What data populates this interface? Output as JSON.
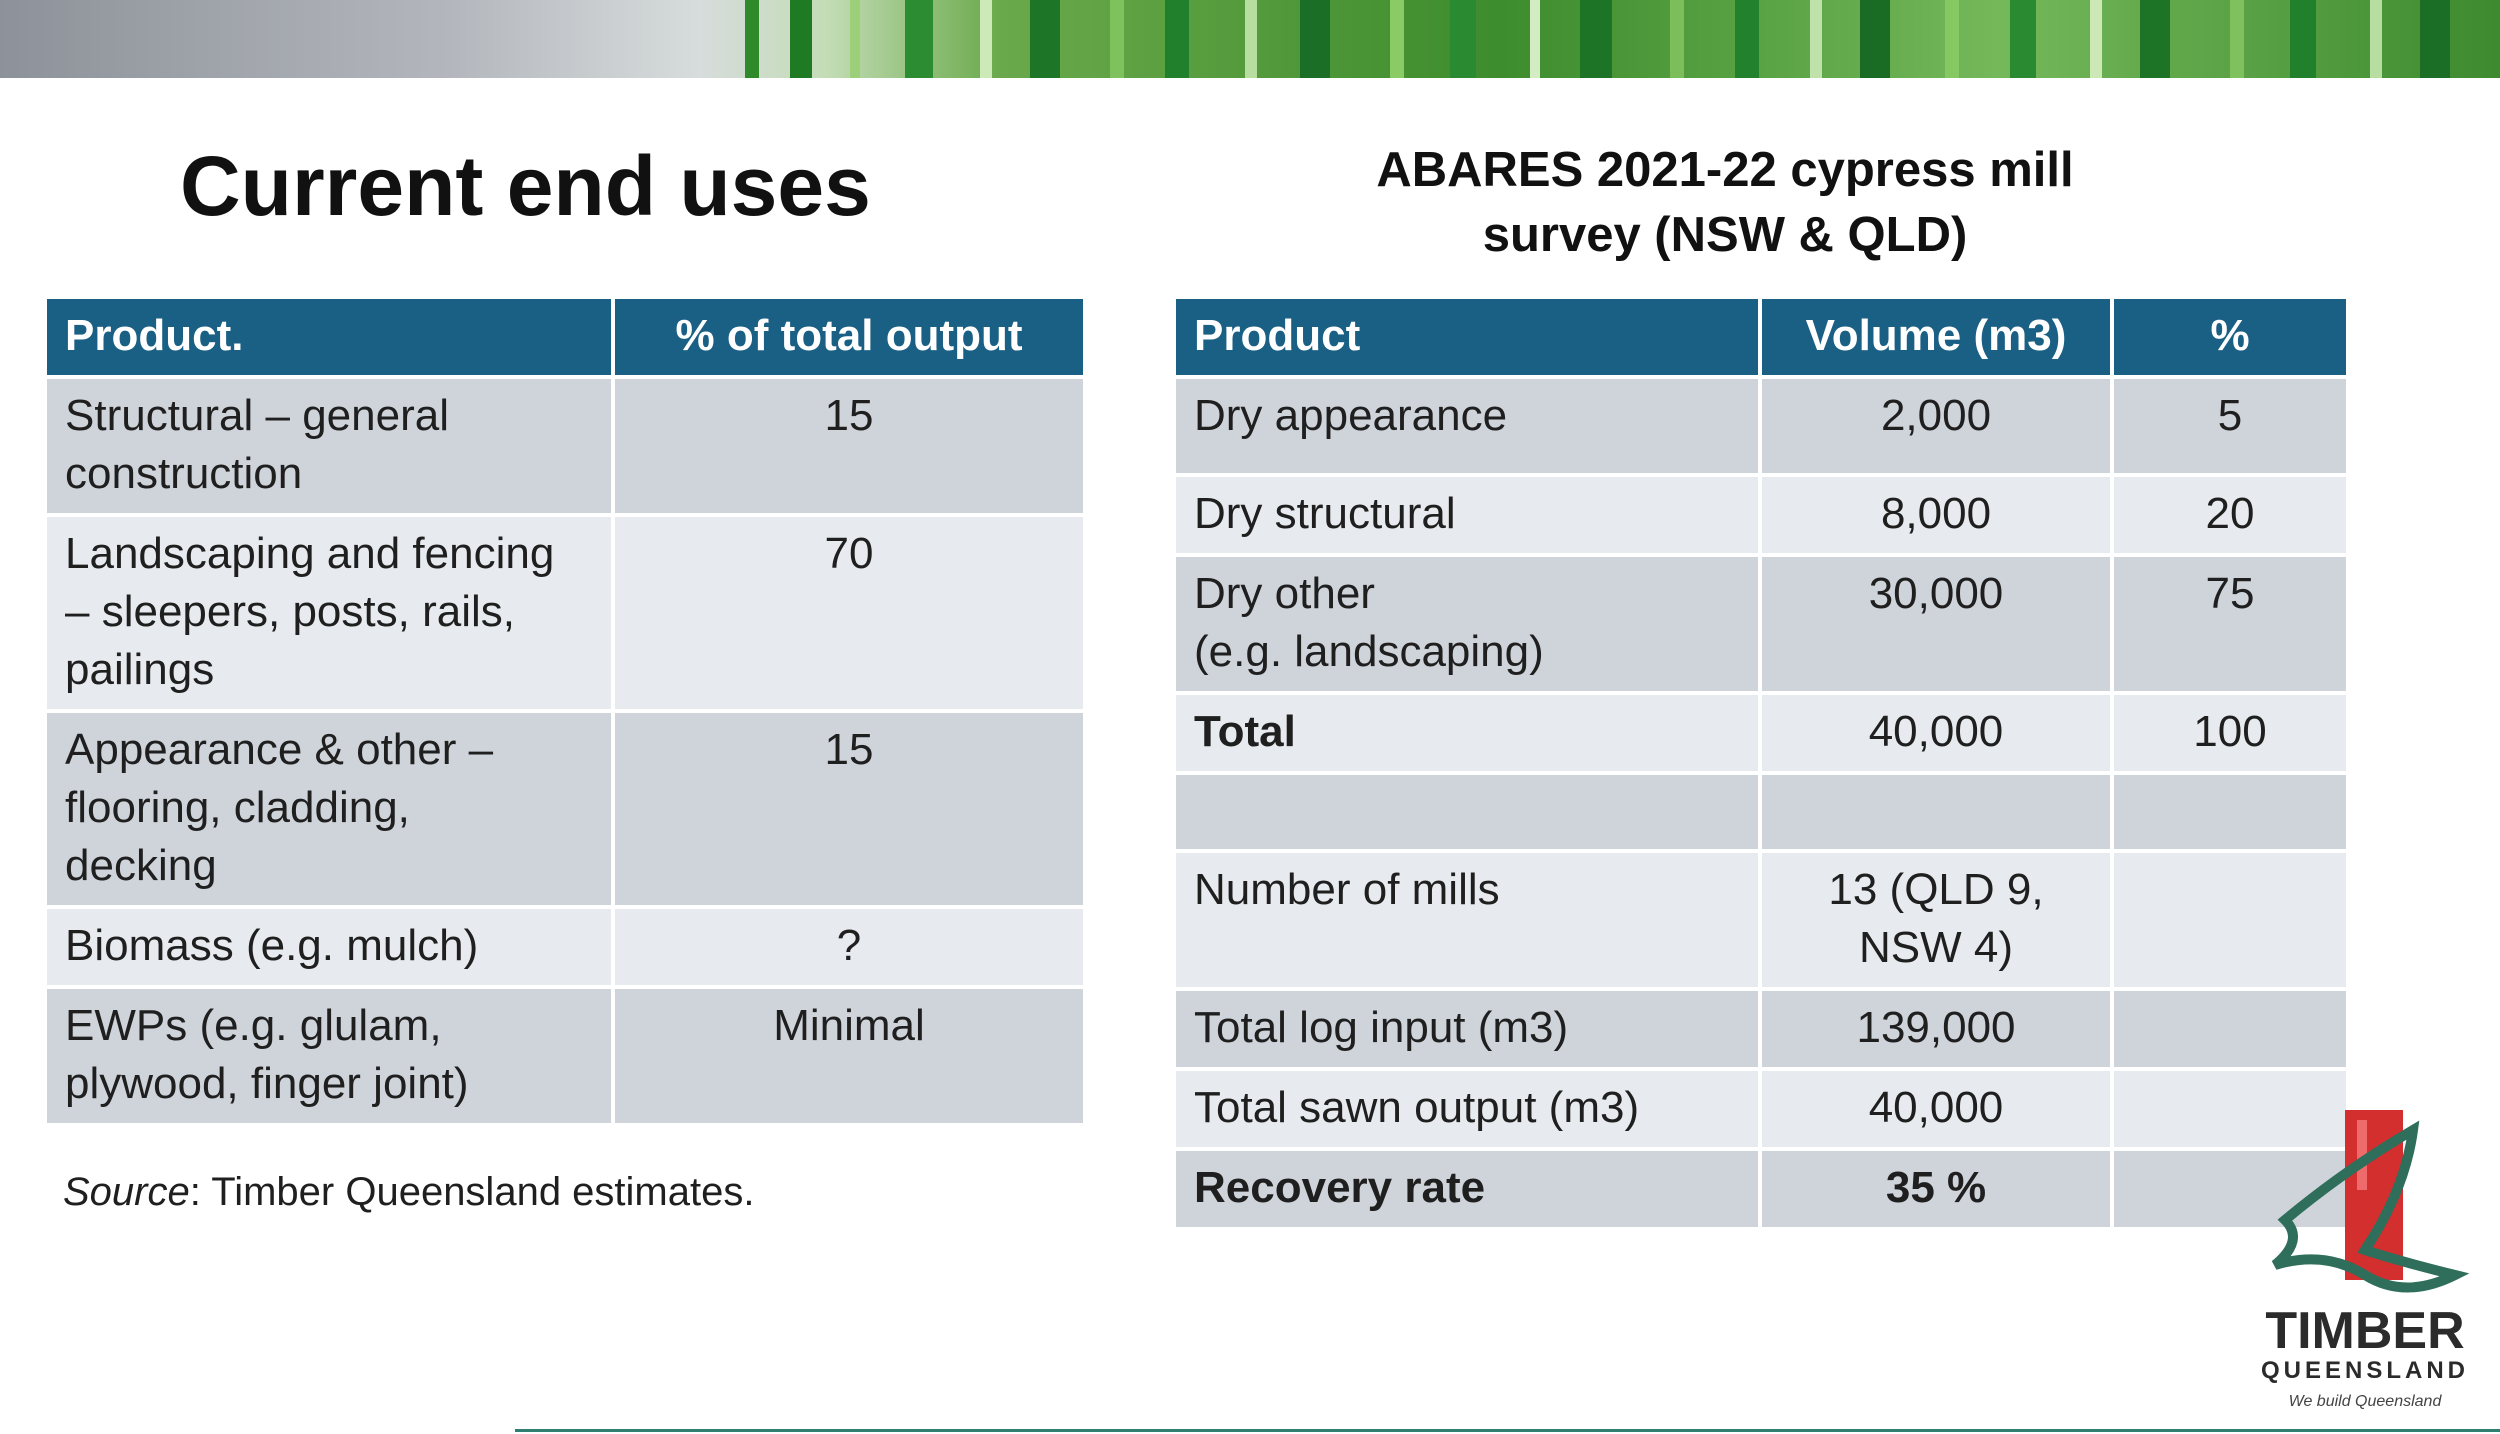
{
  "slide": {
    "title": "Current end uses",
    "subtitle_line1": "ABARES 2021-22 cypress mill",
    "subtitle_line2": "survey (NSW & QLD)"
  },
  "end_uses_table": {
    "headers": [
      "Product.",
      "% of total output"
    ],
    "rows": [
      {
        "line1": "Structural – general",
        "line2": "construction",
        "line3": "",
        "value": "15"
      },
      {
        "line1": "Landscaping and fencing",
        "line2": "– sleepers, posts, rails,",
        "line3": "pailings",
        "value": "70"
      },
      {
        "line1": "Appearance & other –",
        "line2": "flooring, cladding,",
        "line3": "decking",
        "value": "15"
      },
      {
        "line1": "Biomass (e.g. mulch)",
        "line2": "",
        "line3": "",
        "value": "?"
      },
      {
        "line1": "EWPs (e.g. glulam,",
        "line2": "plywood, finger joint)",
        "line3": "",
        "value": "Minimal"
      }
    ],
    "source_label": "Source",
    "source_text": ": Timber Queensland estimates."
  },
  "mill_survey_table": {
    "headers": [
      "Product",
      "Volume (m3)",
      "%"
    ],
    "rows": [
      {
        "product": "Dry appearance",
        "product2": "",
        "volume": "2,000",
        "volume2": "",
        "pct": "5"
      },
      {
        "product": "Dry structural",
        "product2": "",
        "volume": "8,000",
        "volume2": "",
        "pct": "20"
      },
      {
        "product": "Dry other",
        "product2": "(e.g. landscaping)",
        "volume": "30,000",
        "volume2": "",
        "pct": "75"
      },
      {
        "product": "Total",
        "product2": "",
        "volume": "40,000",
        "volume2": "",
        "pct": "100"
      },
      {
        "product": "",
        "product2": "",
        "volume": "",
        "volume2": "",
        "pct": ""
      },
      {
        "product": "Number of mills",
        "product2": "",
        "volume": "13 (QLD 9,",
        "volume2": "NSW 4)",
        "pct": ""
      },
      {
        "product": "Total log input (m3)",
        "product2": "",
        "volume": "139,000",
        "volume2": "",
        "pct": ""
      },
      {
        "product": "Total sawn output (m3)",
        "product2": "",
        "volume": "40,000",
        "volume2": "",
        "pct": ""
      },
      {
        "product": "Recovery rate",
        "product2": "",
        "volume": "35 %",
        "volume2": "",
        "pct": ""
      }
    ]
  },
  "logo": {
    "name": "TIMBER",
    "sub": "QUEENSLAND",
    "tagline": "We build Queensland"
  },
  "colors": {
    "header_bg": "#1a5f84",
    "row_dark": "#cfd4db",
    "row_light": "#e7eaee",
    "logo_red": "#d32f2f",
    "logo_green": "#2f6e5a"
  }
}
